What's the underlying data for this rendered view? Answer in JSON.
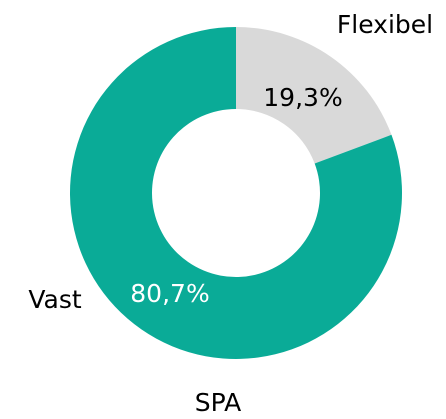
{
  "chart_data": {
    "type": "donut",
    "title": "SPA",
    "categories": [
      "Flexibel",
      "Vast"
    ],
    "values": [
      19.3,
      80.7
    ],
    "value_labels": [
      "19,3%",
      "80,7%"
    ],
    "colors": [
      "#d9d9d9",
      "#0aab97"
    ]
  }
}
